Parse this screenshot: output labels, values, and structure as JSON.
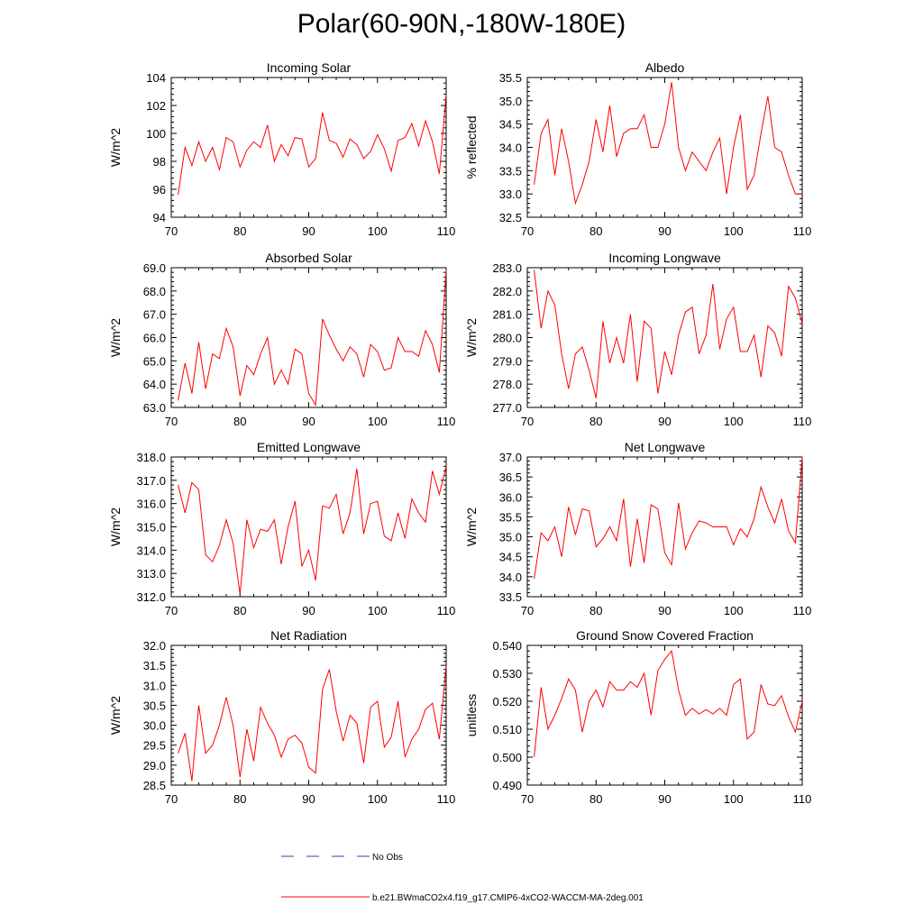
{
  "page": {
    "title": "Polar(60-90N,-180W-180E)"
  },
  "legend": {
    "obs_label": "No Obs",
    "obs_color": "#3d3da8",
    "model_label": "b.e21.BWmaCO2x4.f19_g17.CMIP6-4xCO2-WACCM-MA-2deg.001",
    "model_color": "#ff0000"
  },
  "chart_data": [
    {
      "type": "line",
      "title": "Incoming Solar",
      "ylabel": "W/m^2",
      "xlim": [
        70,
        110
      ],
      "ylim": [
        94,
        104
      ],
      "xticks": [
        70,
        80,
        90,
        100,
        110
      ],
      "yticks": [
        94,
        96,
        98,
        100,
        102,
        104
      ],
      "ytick_labels": [
        "94",
        "96",
        "98",
        "100",
        "102",
        "104"
      ],
      "x": [
        71,
        72,
        73,
        74,
        75,
        76,
        77,
        78,
        79,
        80,
        81,
        82,
        83,
        84,
        85,
        86,
        87,
        88,
        89,
        90,
        91,
        92,
        93,
        94,
        95,
        96,
        97,
        98,
        99,
        100,
        101,
        102,
        103,
        104,
        105,
        106,
        107,
        108,
        109,
        110
      ],
      "series": [
        {
          "name": "b.e21.BWmaCO2x4.f19_g17.CMIP6-4xCO2-WACCM-MA-2deg.001",
          "values": [
            95.6,
            99.0,
            97.7,
            99.4,
            98.0,
            99.0,
            97.4,
            99.7,
            99.4,
            97.6,
            98.8,
            99.4,
            99.0,
            100.6,
            98.0,
            99.2,
            98.4,
            99.7,
            99.6,
            97.6,
            98.2,
            101.5,
            99.5,
            99.3,
            98.3,
            99.6,
            99.2,
            98.2,
            98.7,
            99.9,
            98.9,
            97.3,
            99.5,
            99.7,
            100.7,
            99.1,
            100.9,
            99.4,
            97.1,
            102.8
          ]
        }
      ]
    },
    {
      "type": "line",
      "title": "Albedo",
      "ylabel": "% reflected",
      "xlim": [
        70,
        110
      ],
      "ylim": [
        32.5,
        35.5
      ],
      "xticks": [
        70,
        80,
        90,
        100,
        110
      ],
      "yticks": [
        32.5,
        33.0,
        33.5,
        34.0,
        34.5,
        35.0,
        35.5
      ],
      "ytick_labels": [
        "32.5",
        "33.0",
        "33.5",
        "34.0",
        "34.5",
        "35.0",
        "35.5"
      ],
      "x": [
        71,
        72,
        73,
        74,
        75,
        76,
        77,
        78,
        79,
        80,
        81,
        82,
        83,
        84,
        85,
        86,
        87,
        88,
        89,
        90,
        91,
        92,
        93,
        94,
        95,
        96,
        97,
        98,
        99,
        100,
        101,
        102,
        103,
        104,
        105,
        106,
        107,
        108,
        109,
        110
      ],
      "series": [
        {
          "name": "b.e21.BWmaCO2x4.f19_g17.CMIP6-4xCO2-WACCM-MA-2deg.001",
          "values": [
            33.2,
            34.3,
            34.6,
            33.4,
            34.4,
            33.7,
            32.8,
            33.2,
            33.7,
            34.6,
            33.9,
            34.9,
            33.8,
            34.3,
            34.4,
            34.4,
            34.7,
            34.0,
            34.0,
            34.5,
            35.4,
            34.0,
            33.5,
            33.9,
            33.7,
            33.5,
            33.9,
            34.2,
            33.0,
            34.0,
            34.7,
            33.1,
            33.4,
            34.3,
            35.1,
            34.0,
            33.9,
            33.4,
            33.0,
            33.0
          ]
        }
      ]
    },
    {
      "type": "line",
      "title": "Absorbed Solar",
      "ylabel": "W/m^2",
      "xlim": [
        70,
        110
      ],
      "ylim": [
        63.0,
        69.0
      ],
      "xticks": [
        70,
        80,
        90,
        100,
        110
      ],
      "yticks": [
        63,
        64,
        65,
        66,
        67,
        68,
        69
      ],
      "ytick_labels": [
        "63.0",
        "64.0",
        "65.0",
        "66.0",
        "67.0",
        "68.0",
        "69.0"
      ],
      "x": [
        71,
        72,
        73,
        74,
        75,
        76,
        77,
        78,
        79,
        80,
        81,
        82,
        83,
        84,
        85,
        86,
        87,
        88,
        89,
        90,
        91,
        92,
        93,
        94,
        95,
        96,
        97,
        98,
        99,
        100,
        101,
        102,
        103,
        104,
        105,
        106,
        107,
        108,
        109,
        110
      ],
      "series": [
        {
          "name": "b.e21.BWmaCO2x4.f19_g17.CMIP6-4xCO2-WACCM-MA-2deg.001",
          "values": [
            63.3,
            64.9,
            63.6,
            65.8,
            63.8,
            65.3,
            65.1,
            66.4,
            65.6,
            63.5,
            64.8,
            64.4,
            65.3,
            66.0,
            64.0,
            64.6,
            64.0,
            65.5,
            65.3,
            63.6,
            63.1,
            66.8,
            66.1,
            65.5,
            65.0,
            65.6,
            65.3,
            64.3,
            65.7,
            65.4,
            64.6,
            64.7,
            66.0,
            65.4,
            65.4,
            65.2,
            66.3,
            65.7,
            64.5,
            68.9
          ]
        }
      ]
    },
    {
      "type": "line",
      "title": "Incoming Longwave",
      "ylabel": "W/m^2",
      "xlim": [
        70,
        110
      ],
      "ylim": [
        277.0,
        283.0
      ],
      "xticks": [
        70,
        80,
        90,
        100,
        110
      ],
      "yticks": [
        277,
        278,
        279,
        280,
        281,
        282,
        283
      ],
      "ytick_labels": [
        "277.0",
        "278.0",
        "279.0",
        "280.0",
        "281.0",
        "282.0",
        "283.0"
      ],
      "x": [
        71,
        72,
        73,
        74,
        75,
        76,
        77,
        78,
        79,
        80,
        81,
        82,
        83,
        84,
        85,
        86,
        87,
        88,
        89,
        90,
        91,
        92,
        93,
        94,
        95,
        96,
        97,
        98,
        99,
        100,
        101,
        102,
        103,
        104,
        105,
        106,
        107,
        108,
        109,
        110
      ],
      "series": [
        {
          "name": "b.e21.BWmaCO2x4.f19_g17.CMIP6-4xCO2-WACCM-MA-2deg.001",
          "values": [
            282.9,
            280.4,
            282.0,
            281.4,
            279.3,
            277.8,
            279.3,
            279.6,
            278.6,
            277.4,
            280.7,
            278.9,
            280.0,
            278.9,
            281.0,
            278.1,
            280.7,
            280.4,
            277.6,
            279.4,
            278.4,
            280.1,
            281.1,
            281.3,
            279.3,
            280.1,
            282.3,
            279.5,
            280.8,
            281.3,
            279.4,
            279.4,
            280.1,
            278.3,
            280.5,
            280.2,
            279.2,
            282.2,
            281.7,
            280.6
          ]
        }
      ]
    },
    {
      "type": "line",
      "title": "Emitted Longwave",
      "ylabel": "W/m^2",
      "xlim": [
        70,
        110
      ],
      "ylim": [
        312.0,
        318.0
      ],
      "xticks": [
        70,
        80,
        90,
        100,
        110
      ],
      "yticks": [
        312,
        313,
        314,
        315,
        316,
        317,
        318
      ],
      "ytick_labels": [
        "312.0",
        "313.0",
        "314.0",
        "315.0",
        "316.0",
        "317.0",
        "318.0"
      ],
      "x": [
        71,
        72,
        73,
        74,
        75,
        76,
        77,
        78,
        79,
        80,
        81,
        82,
        83,
        84,
        85,
        86,
        87,
        88,
        89,
        90,
        91,
        92,
        93,
        94,
        95,
        96,
        97,
        98,
        99,
        100,
        101,
        102,
        103,
        104,
        105,
        106,
        107,
        108,
        109,
        110
      ],
      "series": [
        {
          "name": "b.e21.BWmaCO2x4.f19_g17.CMIP6-4xCO2-WACCM-MA-2deg.001",
          "values": [
            316.8,
            315.6,
            316.9,
            316.6,
            313.8,
            313.5,
            314.2,
            315.3,
            314.3,
            312.1,
            315.3,
            314.1,
            314.9,
            314.8,
            315.3,
            313.4,
            315.0,
            316.1,
            313.3,
            314.0,
            312.7,
            315.9,
            315.8,
            316.4,
            314.7,
            315.6,
            317.5,
            314.7,
            316.0,
            316.1,
            314.6,
            314.4,
            315.6,
            314.5,
            316.2,
            315.6,
            315.2,
            317.4,
            316.4,
            317.6
          ]
        }
      ]
    },
    {
      "type": "line",
      "title": "Net Longwave",
      "ylabel": "W/m^2",
      "xlim": [
        70,
        110
      ],
      "ylim": [
        33.5,
        37.0
      ],
      "xticks": [
        70,
        80,
        90,
        100,
        110
      ],
      "yticks": [
        33.5,
        34.0,
        34.5,
        35.0,
        35.5,
        36.0,
        36.5,
        37.0
      ],
      "ytick_labels": [
        "33.5",
        "34.0",
        "34.5",
        "35.0",
        "35.5",
        "36.0",
        "36.5",
        "37.0"
      ],
      "x": [
        71,
        72,
        73,
        74,
        75,
        76,
        77,
        78,
        79,
        80,
        81,
        82,
        83,
        84,
        85,
        86,
        87,
        88,
        89,
        90,
        91,
        92,
        93,
        94,
        95,
        96,
        97,
        98,
        99,
        100,
        101,
        102,
        103,
        104,
        105,
        106,
        107,
        108,
        109,
        110
      ],
      "series": [
        {
          "name": "b.e21.BWmaCO2x4.f19_g17.CMIP6-4xCO2-WACCM-MA-2deg.001",
          "values": [
            33.95,
            35.1,
            34.9,
            35.25,
            34.5,
            35.75,
            35.05,
            35.7,
            35.65,
            34.75,
            34.95,
            35.25,
            34.9,
            35.95,
            34.25,
            35.45,
            34.35,
            35.8,
            35.7,
            34.6,
            34.3,
            35.85,
            34.7,
            35.1,
            35.4,
            35.35,
            35.25,
            35.25,
            35.25,
            34.8,
            35.2,
            35.0,
            35.45,
            36.25,
            35.75,
            35.35,
            35.95,
            35.15,
            34.85,
            37.0
          ]
        }
      ]
    },
    {
      "type": "line",
      "title": "Net Radiation",
      "ylabel": "W/m^2",
      "xlim": [
        70,
        110
      ],
      "ylim": [
        28.5,
        32.0
      ],
      "xticks": [
        70,
        80,
        90,
        100,
        110
      ],
      "yticks": [
        28.5,
        29.0,
        29.5,
        30.0,
        30.5,
        31.0,
        31.5,
        32.0
      ],
      "ytick_labels": [
        "28.5",
        "29.0",
        "29.5",
        "30.0",
        "30.5",
        "31.0",
        "31.5",
        "32.0"
      ],
      "x": [
        71,
        72,
        73,
        74,
        75,
        76,
        77,
        78,
        79,
        80,
        81,
        82,
        83,
        84,
        85,
        86,
        87,
        88,
        89,
        90,
        91,
        92,
        93,
        94,
        95,
        96,
        97,
        98,
        99,
        100,
        101,
        102,
        103,
        104,
        105,
        106,
        107,
        108,
        109,
        110
      ],
      "series": [
        {
          "name": "b.e21.BWmaCO2x4.f19_g17.CMIP6-4xCO2-WACCM-MA-2deg.001",
          "values": [
            29.3,
            29.8,
            28.6,
            30.5,
            29.3,
            29.5,
            30.0,
            30.7,
            30.0,
            28.7,
            29.9,
            29.1,
            30.45,
            30.05,
            29.75,
            29.2,
            29.65,
            29.75,
            29.55,
            28.95,
            28.8,
            30.9,
            31.4,
            30.35,
            29.6,
            30.25,
            30.05,
            29.05,
            30.45,
            30.6,
            29.45,
            29.7,
            30.6,
            29.2,
            29.65,
            29.9,
            30.4,
            30.55,
            29.65,
            31.5
          ]
        }
      ]
    },
    {
      "type": "line",
      "title": "Ground Snow Covered Fraction",
      "ylabel": "unitless",
      "xlim": [
        70,
        110
      ],
      "ylim": [
        0.49,
        0.54
      ],
      "xticks": [
        70,
        80,
        90,
        100,
        110
      ],
      "yticks": [
        0.49,
        0.5,
        0.51,
        0.52,
        0.53,
        0.54
      ],
      "ytick_labels": [
        "0.490",
        "0.500",
        "0.510",
        "0.520",
        "0.530",
        "0.540"
      ],
      "x": [
        71,
        72,
        73,
        74,
        75,
        76,
        77,
        78,
        79,
        80,
        81,
        82,
        83,
        84,
        85,
        86,
        87,
        88,
        89,
        90,
        91,
        92,
        93,
        94,
        95,
        96,
        97,
        98,
        99,
        100,
        101,
        102,
        103,
        104,
        105,
        106,
        107,
        108,
        109,
        110
      ],
      "series": [
        {
          "name": "b.e21.BWmaCO2x4.f19_g17.CMIP6-4xCO2-WACCM-MA-2deg.001",
          "values": [
            0.5,
            0.525,
            0.51,
            0.515,
            0.521,
            0.528,
            0.524,
            0.509,
            0.52,
            0.524,
            0.518,
            0.527,
            0.524,
            0.524,
            0.527,
            0.525,
            0.53,
            0.515,
            0.531,
            0.535,
            0.538,
            0.524,
            0.515,
            0.5175,
            0.5155,
            0.517,
            0.5155,
            0.5175,
            0.515,
            0.526,
            0.528,
            0.5065,
            0.509,
            0.526,
            0.519,
            0.5185,
            0.522,
            0.5145,
            0.509,
            0.52
          ]
        }
      ]
    }
  ]
}
